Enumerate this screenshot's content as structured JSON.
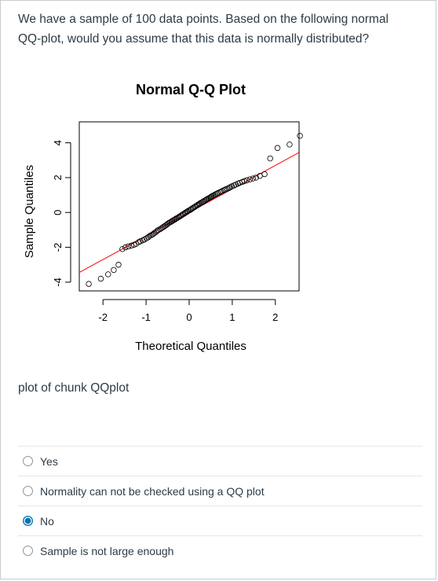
{
  "question": {
    "line1": "We have a sample of 100 data points. Based on the following normal",
    "line2": "QQ-plot, would you assume that this data is normally distributed?"
  },
  "caption": "plot of chunk QQplot",
  "answers": [
    {
      "label": "Yes",
      "selected": false
    },
    {
      "label": "Normality can not be checked using a QQ plot",
      "selected": false
    },
    {
      "label": "No",
      "selected": true
    },
    {
      "label": "Sample is not large enough",
      "selected": false
    }
  ],
  "colors": {
    "text": "#2d3b45",
    "reference_line": "#ff0000",
    "radio_selected": "#0374b5"
  },
  "chart_data": {
    "type": "scatter",
    "title": "Normal Q-Q Plot",
    "xlabel": "Theoretical Quantiles",
    "ylabel": "Sample Quantiles",
    "xlim": [
      -2.55,
      2.55
    ],
    "ylim": [
      -4.5,
      5.2
    ],
    "x_ticks": [
      -2,
      -1,
      0,
      1,
      2
    ],
    "y_ticks": [
      -4,
      -2,
      0,
      2,
      4
    ],
    "x": [
      -2.33,
      -2.05,
      -1.88,
      -1.75,
      -1.64,
      -1.55,
      -1.48,
      -1.41,
      -1.34,
      -1.28,
      -1.23,
      -1.17,
      -1.13,
      -1.08,
      -1.04,
      -0.99,
      -0.95,
      -0.92,
      -0.88,
      -0.84,
      -0.81,
      -0.77,
      -0.74,
      -0.71,
      -0.67,
      -0.64,
      -0.61,
      -0.58,
      -0.55,
      -0.52,
      -0.5,
      -0.47,
      -0.44,
      -0.41,
      -0.39,
      -0.36,
      -0.33,
      -0.31,
      -0.28,
      -0.25,
      -0.23,
      -0.2,
      -0.18,
      -0.15,
      -0.13,
      -0.1,
      -0.08,
      -0.05,
      -0.03,
      0.0,
      0.03,
      0.05,
      0.08,
      0.1,
      0.13,
      0.15,
      0.18,
      0.2,
      0.23,
      0.25,
      0.28,
      0.31,
      0.33,
      0.36,
      0.39,
      0.41,
      0.44,
      0.47,
      0.5,
      0.52,
      0.55,
      0.58,
      0.61,
      0.64,
      0.67,
      0.71,
      0.74,
      0.77,
      0.81,
      0.84,
      0.88,
      0.92,
      0.95,
      0.99,
      1.04,
      1.08,
      1.13,
      1.17,
      1.23,
      1.28,
      1.34,
      1.41,
      1.48,
      1.55,
      1.64,
      1.75,
      1.88,
      2.05,
      2.33,
      2.57
    ],
    "y": [
      -4.1,
      -3.8,
      -3.55,
      -3.3,
      -3.0,
      -2.1,
      -2.0,
      -1.95,
      -1.9,
      -1.85,
      -1.8,
      -1.7,
      -1.65,
      -1.6,
      -1.55,
      -1.48,
      -1.42,
      -1.35,
      -1.3,
      -1.25,
      -1.18,
      -1.12,
      -1.05,
      -1.0,
      -0.95,
      -0.9,
      -0.85,
      -0.8,
      -0.75,
      -0.7,
      -0.65,
      -0.6,
      -0.56,
      -0.52,
      -0.48,
      -0.44,
      -0.4,
      -0.36,
      -0.32,
      -0.28,
      -0.24,
      -0.2,
      -0.16,
      -0.12,
      -0.08,
      -0.04,
      0.0,
      0.04,
      0.08,
      0.12,
      0.16,
      0.2,
      0.24,
      0.28,
      0.32,
      0.36,
      0.4,
      0.44,
      0.48,
      0.52,
      0.56,
      0.6,
      0.64,
      0.68,
      0.72,
      0.76,
      0.8,
      0.84,
      0.88,
      0.92,
      0.96,
      1.0,
      1.04,
      1.08,
      1.12,
      1.16,
      1.2,
      1.24,
      1.28,
      1.32,
      1.36,
      1.4,
      1.45,
      1.5,
      1.55,
      1.6,
      1.65,
      1.7,
      1.75,
      1.8,
      1.85,
      1.9,
      1.95,
      2.0,
      2.1,
      2.2,
      3.1,
      3.7,
      3.9,
      4.4
    ],
    "reference_line": {
      "intercept": 0.0,
      "slope": 1.35
    }
  }
}
